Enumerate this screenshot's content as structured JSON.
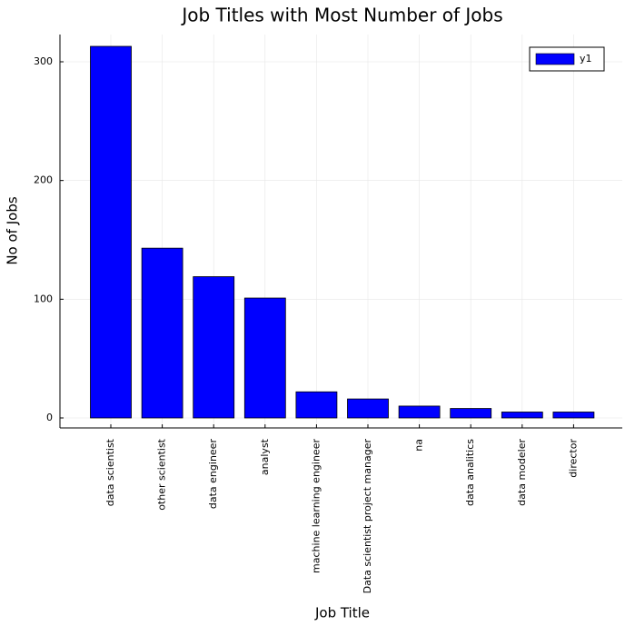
{
  "chart_data": {
    "type": "bar",
    "title": "Job Titles with Most Number of Jobs",
    "xlabel": "Job Title",
    "ylabel": "No of Jobs",
    "categories": [
      "data scientist",
      "other scientist",
      "data engineer",
      "analyst",
      "machine learning engineer",
      "Data scientist project manager",
      "na",
      "data analitics",
      "data modeler",
      "director"
    ],
    "series": [
      {
        "name": "y1",
        "values": [
          313,
          143,
          119,
          101,
          22,
          16,
          10,
          8,
          5,
          5
        ],
        "color": "#0000ff"
      }
    ],
    "ylim": [
      0,
      322
    ],
    "yticks": [
      0,
      100,
      200,
      300
    ],
    "grid": true,
    "legend_position": "top-right"
  }
}
